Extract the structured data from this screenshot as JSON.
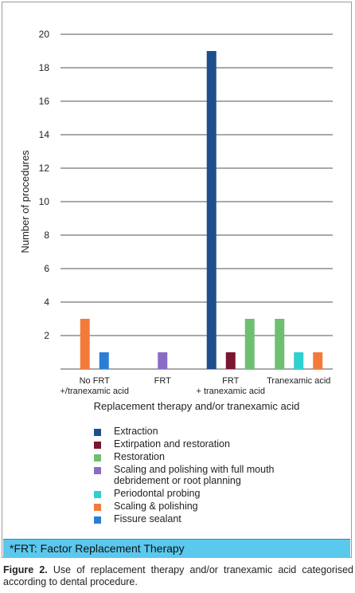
{
  "chart_data": {
    "type": "bar",
    "title": "",
    "xlabel": "Replacement therapy and/or tranexamic acid",
    "ylabel": "Number of procedures",
    "ylim": [
      0,
      20
    ],
    "yticks": [
      2,
      4,
      6,
      8,
      10,
      12,
      14,
      16,
      18,
      20
    ],
    "grid": true,
    "legend_placement": "bottom",
    "categories": [
      [
        "No FRT",
        "+/tranexamic acid"
      ],
      [
        "FRT"
      ],
      [
        "FRT",
        "+ tranexamic acid"
      ],
      [
        "Tranexamic acid"
      ]
    ],
    "series": [
      {
        "name": "Extraction",
        "color": "#1f4e8c",
        "values": [
          0,
          0,
          19,
          0
        ]
      },
      {
        "name": "Extirpation and restoration",
        "color": "#7b1630",
        "values": [
          0,
          0,
          1,
          0
        ]
      },
      {
        "name": "Restoration",
        "color": "#6fbf73",
        "values": [
          0,
          0,
          3,
          3
        ]
      },
      {
        "name": "Scaling and polishing with full mouth debridement or root planning",
        "legend_lines": [
          "Scaling and polishing with full mouth",
          "debridement or root planning"
        ],
        "color": "#8a6cc4",
        "values": [
          0,
          1,
          0,
          0
        ]
      },
      {
        "name": "Periodontal probing",
        "color": "#2fd0d0",
        "values": [
          0,
          0,
          0,
          1
        ]
      },
      {
        "name": "Scaling & polishing",
        "color": "#f47a3a",
        "values": [
          3,
          0,
          0,
          1
        ]
      },
      {
        "name": "Fissure sealant",
        "color": "#2a7fd4",
        "values": [
          1,
          0,
          0,
          0
        ]
      }
    ]
  },
  "footnote": "*FRT: Factor Replacement Therapy",
  "caption": {
    "label": "Figure 2.",
    "text": " Use of replacement therapy and/or tranexamic acid categorised according to dental procedure."
  }
}
